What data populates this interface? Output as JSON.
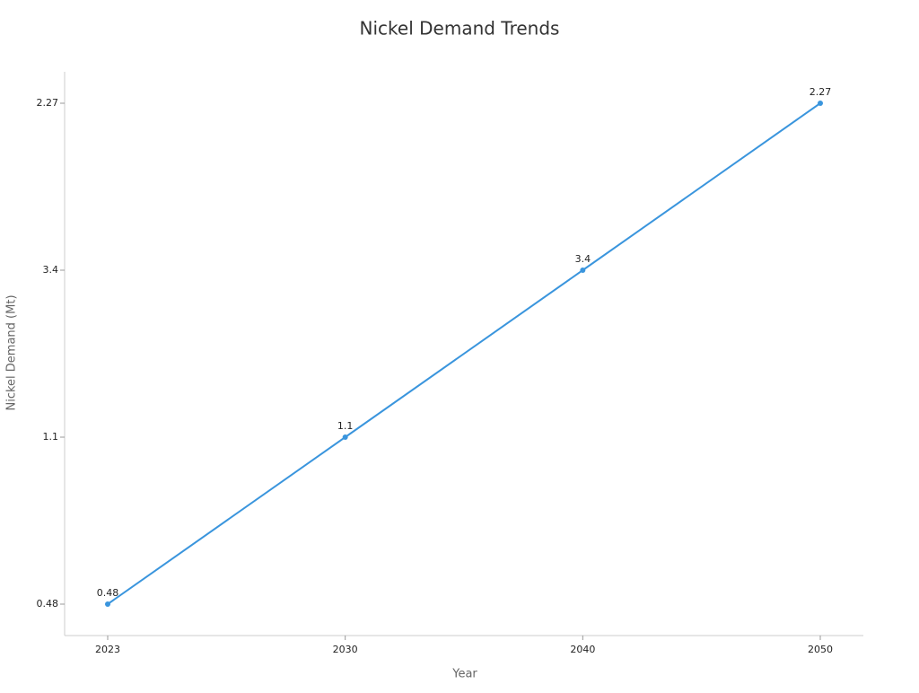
{
  "chart_data": {
    "type": "line",
    "title": "Nickel Demand Trends",
    "x_label": "Year",
    "y_label": "Nickel Demand (Mt)",
    "categories": [
      "2023",
      "2030",
      "2040",
      "2050"
    ],
    "y_categories": [
      0.48,
      1.1,
      3.4,
      2.27
    ],
    "series": [
      {
        "name": "Nickel Demand (Mt)",
        "color": "#3a95dd",
        "values": [
          0.48,
          1.1,
          3.4,
          2.27
        ]
      }
    ]
  }
}
